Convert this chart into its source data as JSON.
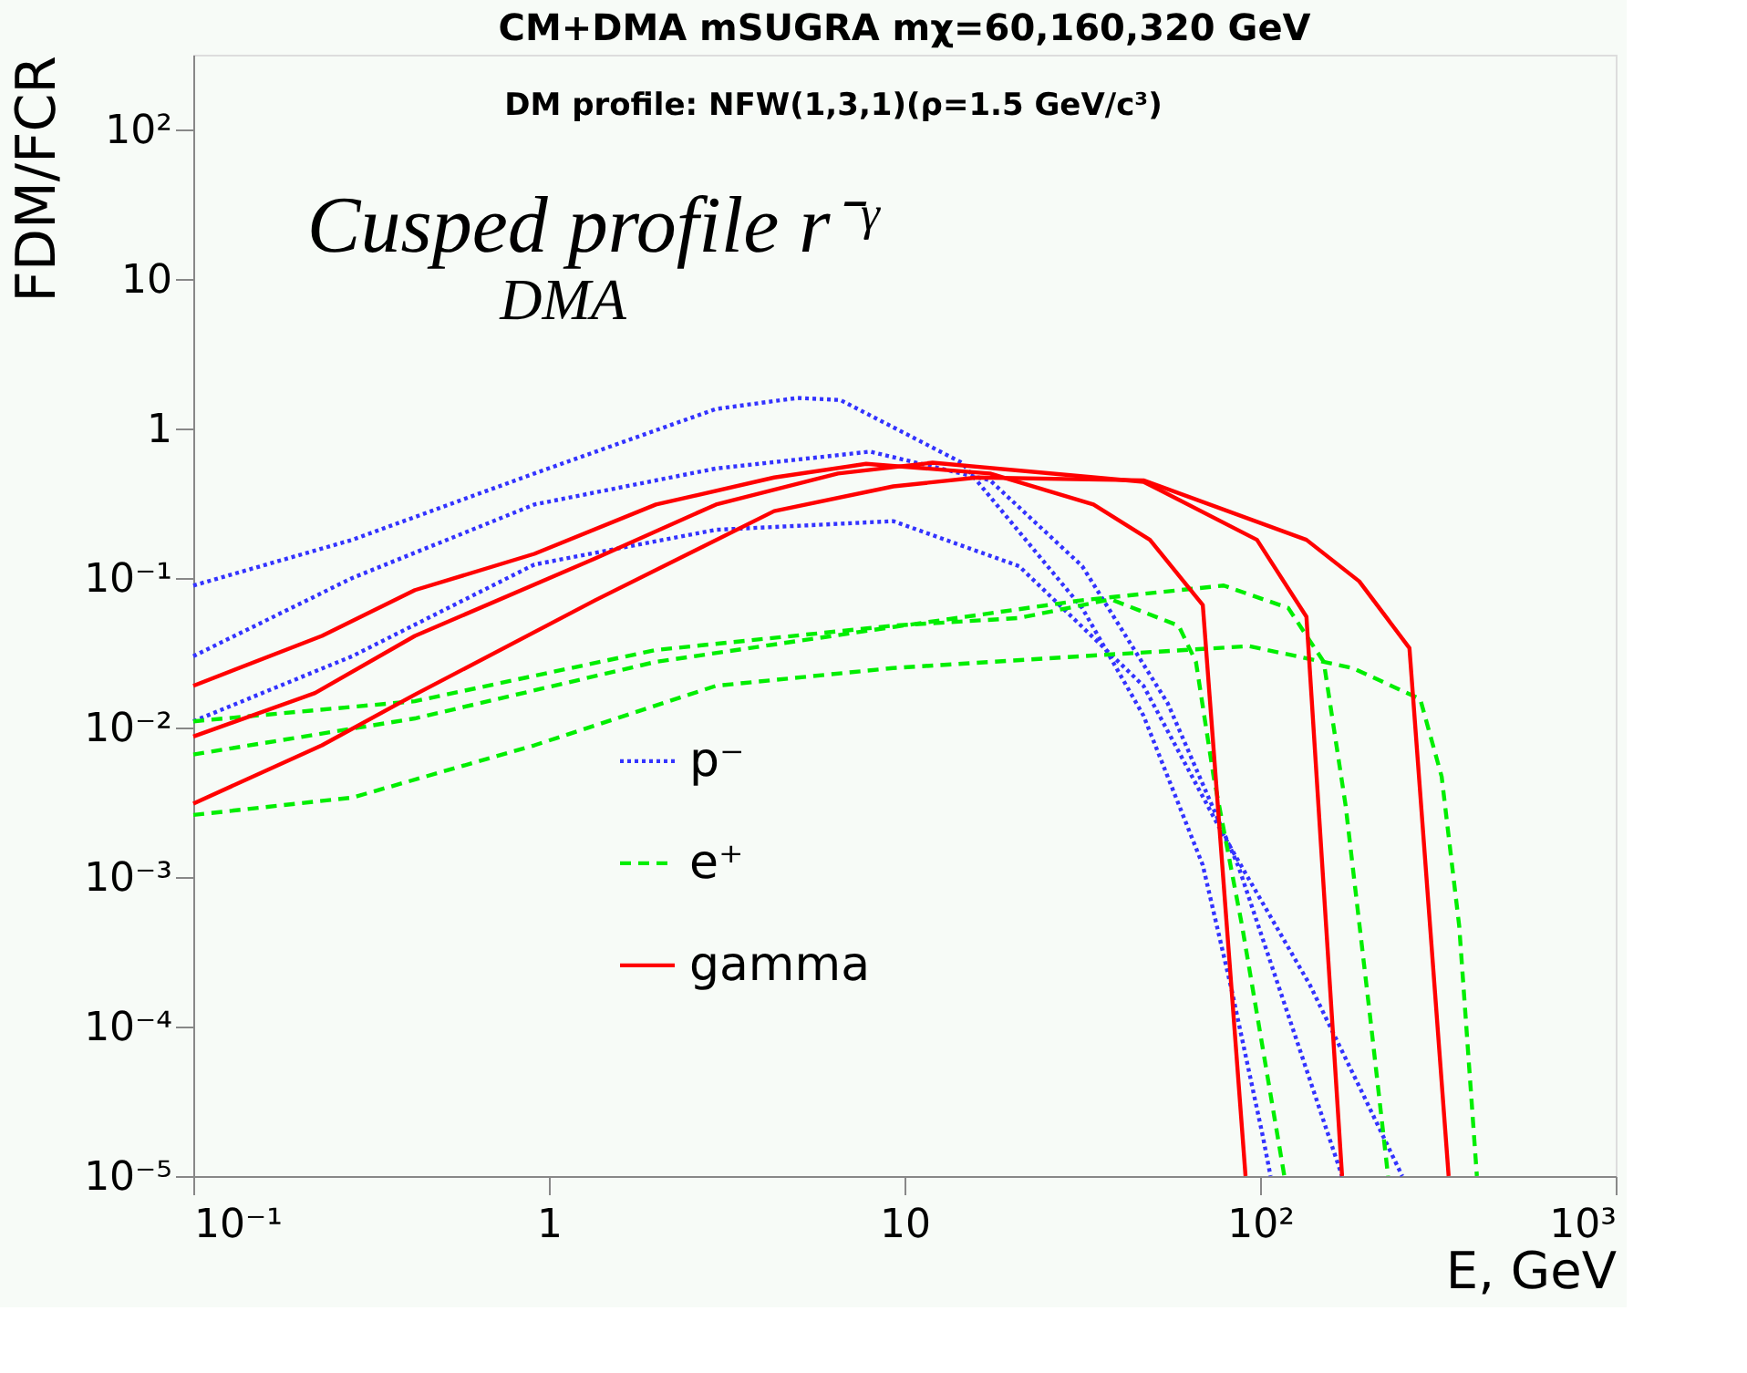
{
  "chart_data": {
    "type": "line",
    "title": "CM+DMA  mSUGRA mχ=60,160,320 GeV",
    "xlabel": "E, GeV",
    "ylabel": "FDM/FCR",
    "annotations": [
      "DM profile: NFW(1,3,1)(ρ=1.5 GeV/c³)",
      "Cusped profile r⁻ᵞ",
      "DMA"
    ],
    "log": "xy",
    "xlim": [
      0.1,
      1000
    ],
    "ylim": [
      1e-05,
      316
    ],
    "xticks": [
      {
        "value": 0.1,
        "label": "10⁻¹"
      },
      1,
      10,
      {
        "value": 100,
        "label": "10²"
      },
      {
        "value": 1000,
        "label": "10³"
      }
    ],
    "yticks": [
      {
        "value": 1e-05,
        "label": "10⁻⁵"
      },
      {
        "value": 0.0001,
        "label": "10⁻⁴"
      },
      {
        "value": 0.001,
        "label": "10⁻³"
      },
      {
        "value": 0.01,
        "label": "10⁻²"
      },
      {
        "value": 0.1,
        "label": "10⁻¹"
      },
      1,
      10,
      {
        "value": 100,
        "label": "10²"
      }
    ],
    "legend": "bottom left",
    "series": [
      {
        "name": "p⁻",
        "color": "#3333ff",
        "line_style": "dotted",
        "x": [
          0.1,
          0.28,
          0.91,
          2.95,
          5,
          6.6,
          14.5,
          31.6,
          47,
          69,
          83,
          102,
          107
        ],
        "values": [
          0.089,
          0.18,
          0.5,
          1.35,
          1.6,
          1.55,
          0.59,
          0.063,
          0.012,
          0.0012,
          0.00018,
          1.8e-05,
          1e-05
        ]
      },
      {
        "color": "#3333ff",
        "line_style": "dotted",
        "x": [
          0.1,
          0.28,
          0.91,
          2.95,
          8,
          17.4,
          31.6,
          55,
          87,
          123,
          170
        ],
        "values": [
          0.03,
          0.1,
          0.31,
          0.54,
          0.7,
          0.45,
          0.12,
          0.0145,
          0.00117,
          0.0001,
          1e-05
        ]
      },
      {
        "color": "#3333ff",
        "line_style": "dotted",
        "x": [
          0.1,
          0.28,
          0.91,
          2.95,
          9.3,
          21,
          47,
          78,
          138,
          195,
          251
        ],
        "values": [
          0.011,
          0.03,
          0.123,
          0.21,
          0.24,
          0.12,
          0.019,
          0.002,
          0.00019,
          3.5e-05,
          1e-05
        ]
      },
      {
        "name": "e⁺",
        "color": "#00ee00",
        "line_style": "dashed",
        "x": [
          0.1,
          0.42,
          2,
          9.3,
          21,
          38,
          59,
          66,
          74,
          89,
          117
        ],
        "values": [
          0.011,
          0.015,
          0.033,
          0.048,
          0.054,
          0.072,
          0.048,
          0.0275,
          0.0047,
          0.00047,
          1e-05
        ]
      },
      {
        "color": "#00ee00",
        "line_style": "dashed",
        "x": [
          0.1,
          0.42,
          2,
          9.3,
          31.6,
          79,
          120,
          151,
          174,
          204,
          229
        ],
        "values": [
          0.0066,
          0.0115,
          0.0275,
          0.047,
          0.071,
          0.089,
          0.063,
          0.0275,
          0.003,
          0.000115,
          1e-05
        ]
      },
      {
        "color": "#00ee00",
        "line_style": "dashed",
        "x": [
          0.1,
          0.28,
          0.91,
          2.95,
          9.3,
          31.6,
          93,
          182,
          282,
          324,
          363,
          407
        ],
        "values": [
          0.0026,
          0.0034,
          0.0076,
          0.019,
          0.025,
          0.03,
          0.035,
          0.025,
          0.0155,
          0.0047,
          0.00047,
          1e-05
        ]
      },
      {
        "name": "gamma",
        "color": "#ff0000",
        "line_style": "solid",
        "x": [
          0.1,
          0.23,
          0.42,
          0.91,
          2,
          4.3,
          7.8,
          17.4,
          34,
          49,
          69,
          91
        ],
        "values": [
          0.019,
          0.041,
          0.083,
          0.145,
          0.31,
          0.47,
          0.58,
          0.5,
          0.31,
          0.18,
          0.066,
          1e-05
        ]
      },
      {
        "color": "#ff0000",
        "line_style": "solid",
        "x": [
          0.1,
          0.22,
          0.42,
          1.35,
          2.95,
          6.5,
          12,
          47,
          98,
          135,
          170
        ],
        "values": [
          0.0087,
          0.017,
          0.041,
          0.135,
          0.31,
          0.5,
          0.59,
          0.44,
          0.18,
          0.055,
          1e-05
        ]
      },
      {
        "color": "#ff0000",
        "line_style": "solid",
        "x": [
          0.1,
          0.23,
          0.42,
          1.35,
          4.3,
          9.3,
          16,
          47,
          135,
          190,
          263,
          339
        ],
        "values": [
          0.0031,
          0.0076,
          0.0166,
          0.071,
          0.28,
          0.41,
          0.47,
          0.45,
          0.18,
          0.095,
          0.034,
          1e-05
        ]
      }
    ]
  }
}
